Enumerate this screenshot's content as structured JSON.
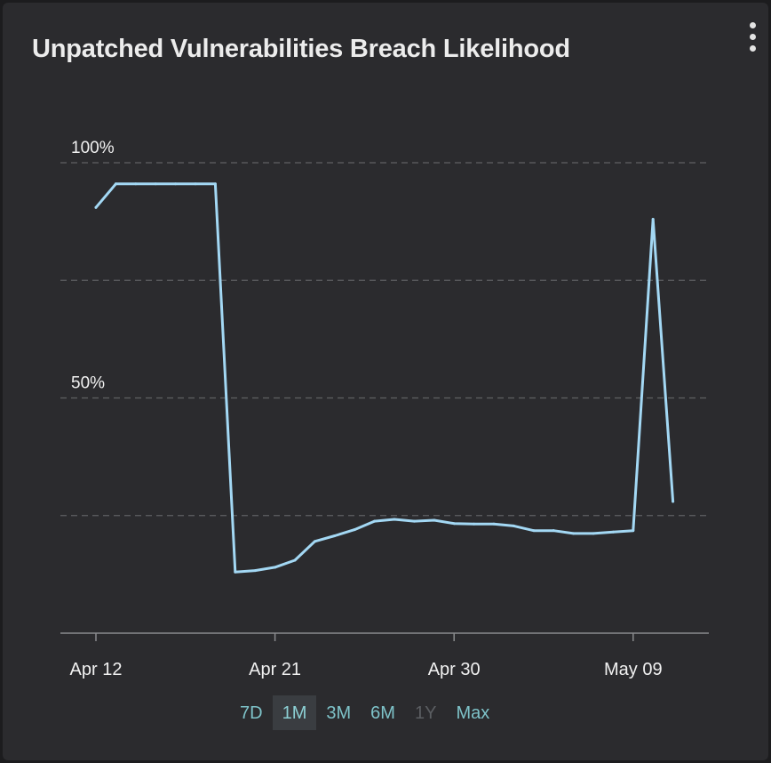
{
  "card": {
    "title": "Unpatched Vulnerabilities Breach Likelihood",
    "menu_icon": "more-vertical-icon"
  },
  "colors": {
    "background": "#2b2b2e",
    "line": "#a3d8f4",
    "gridline": "#5f6063",
    "axis_text": "#f1f1f1",
    "range_text": "#7ec3c9",
    "range_selected_bg": "#3a3d41",
    "range_disabled": "#5b5e62"
  },
  "chart_data": {
    "type": "line",
    "title": "",
    "xlabel": "",
    "ylabel": "",
    "x_ticks": [
      "Apr 12",
      "Apr 21",
      "Apr 30",
      "May 09"
    ],
    "y_tick_labels": [
      {
        "value": 100,
        "label": "100%"
      },
      {
        "value": 50,
        "label": "50%"
      }
    ],
    "y_gridlines": [
      100,
      75,
      50,
      25
    ],
    "ylim": [
      0,
      100
    ],
    "xlim": [
      "2024-04-10",
      "2024-05-14"
    ],
    "grid": true,
    "legend": false,
    "series": [
      {
        "x": [
          "2024-04-12",
          "2024-04-13",
          "2024-04-14",
          "2024-04-15",
          "2024-04-16",
          "2024-04-17",
          "2024-04-18",
          "2024-04-19",
          "2024-04-20",
          "2024-04-21",
          "2024-04-22",
          "2024-04-23",
          "2024-04-24",
          "2024-04-25",
          "2024-04-26",
          "2024-04-27",
          "2024-04-28",
          "2024-04-29",
          "2024-04-30",
          "2024-05-01",
          "2024-05-02",
          "2024-05-03",
          "2024-05-04",
          "2024-05-05",
          "2024-05-06",
          "2024-05-07",
          "2024-05-08",
          "2024-05-09",
          "2024-05-10",
          "2024-05-11"
        ],
        "values": [
          90.5,
          95.5,
          95.5,
          95.5,
          95.5,
          95.5,
          95.5,
          13,
          13.3,
          14,
          15.5,
          19.5,
          20.7,
          22,
          23.8,
          24.2,
          23.8,
          24,
          23.3,
          23.2,
          23.2,
          22.8,
          21.8,
          21.8,
          21.2,
          21.2,
          21.5,
          21.8,
          88,
          28
        ]
      }
    ]
  },
  "time_ranges": [
    {
      "label": "7D",
      "state": "normal"
    },
    {
      "label": "1M",
      "state": "selected"
    },
    {
      "label": "3M",
      "state": "normal"
    },
    {
      "label": "6M",
      "state": "normal"
    },
    {
      "label": "1Y",
      "state": "disabled"
    },
    {
      "label": "Max",
      "state": "normal"
    }
  ]
}
